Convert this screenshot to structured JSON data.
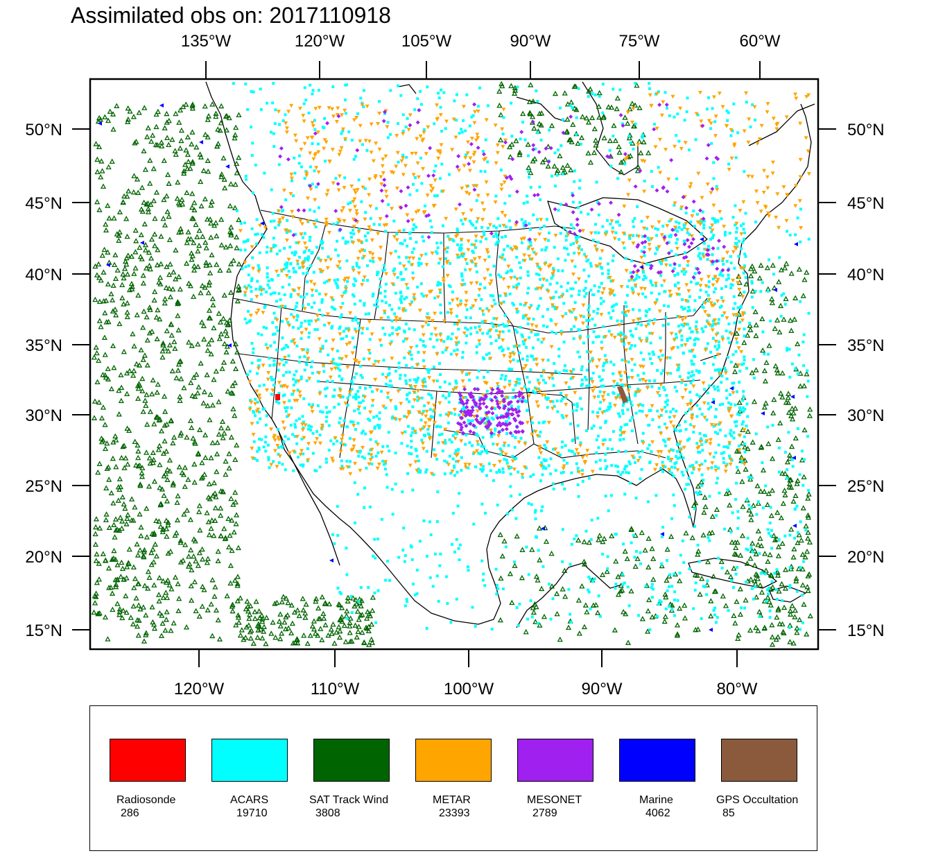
{
  "title": "Assimilated obs on: 2017110918",
  "top_axis_labels": [
    "135°W",
    "120°W",
    "105°W",
    "90°W",
    "75°W",
    "60°W"
  ],
  "bottom_axis_labels": [
    "120°W",
    "110°W",
    "100°W",
    "90°W",
    "80°W"
  ],
  "lat_labels": [
    "50°N",
    "45°N",
    "40°N",
    "35°N",
    "30°N",
    "25°N",
    "20°N",
    "15°N"
  ],
  "legend": [
    {
      "name": "Radiosonde",
      "count": "286",
      "color": "#ff0000"
    },
    {
      "name": "ACARS",
      "count": "19710",
      "color": "#00ffff"
    },
    {
      "name": "SAT Track Wind",
      "count": "3808",
      "color": "#006400"
    },
    {
      "name": "METAR",
      "count": "23393",
      "color": "#ffa500"
    },
    {
      "name": "MESONET",
      "count": "2789",
      "color": "#a020f0"
    },
    {
      "name": "Marine",
      "count": "4062",
      "color": "#0000ff"
    },
    {
      "name": "GPS Occultation",
      "count": "85",
      "color": "#8b5a3c"
    }
  ],
  "map": {
    "projection": "Lambert conformal (CONUS domain)",
    "symbols": {
      "ACARS": "cyan-square",
      "SAT Track Wind": "green-triangle-up",
      "METAR": "orange-triangle-down",
      "MESONET": "purple-diamond",
      "Marine": "blue-triangle-left",
      "Radiosonde": "red-dot",
      "GPS Occultation": "brown-dot"
    }
  }
}
